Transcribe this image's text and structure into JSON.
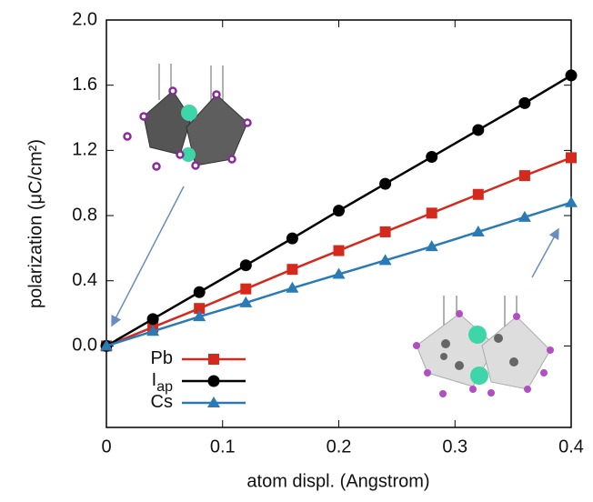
{
  "chart_data": {
    "type": "line",
    "xlabel": "atom displ. (Angstrom)",
    "ylabel": "polarization (μC/cm²)",
    "x": [
      0,
      0.04,
      0.08,
      0.12,
      0.16,
      0.2,
      0.24,
      0.28,
      0.32,
      0.36,
      0.4
    ],
    "series": [
      {
        "name": "Pb",
        "color": "#d42a1e",
        "marker": "square",
        "values": [
          0,
          0.115,
          0.23,
          0.35,
          0.47,
          0.585,
          0.7,
          0.815,
          0.93,
          1.045,
          1.155
        ]
      },
      {
        "name": "I",
        "name_subscript": "ap",
        "color": "#000000",
        "marker": "circle",
        "values": [
          0,
          0.165,
          0.33,
          0.495,
          0.66,
          0.83,
          0.995,
          1.16,
          1.325,
          1.49,
          1.66
        ]
      },
      {
        "name": "Cs",
        "color": "#2a7ab5",
        "marker": "triangle",
        "values": [
          0,
          0.09,
          0.18,
          0.265,
          0.355,
          0.44,
          0.525,
          0.61,
          0.7,
          0.79,
          0.88
        ]
      }
    ],
    "xlim": [
      0,
      0.4
    ],
    "xticks": [
      0,
      0.1,
      0.2,
      0.3,
      0.4
    ],
    "ylim": [
      -0.5,
      2.0
    ],
    "yticks": [
      {
        "value": 0,
        "label": "0.0"
      },
      0.4,
      0.8,
      1.2,
      1.6,
      {
        "value": 2,
        "label": "2.0"
      }
    ],
    "legend": "lower-left"
  }
}
